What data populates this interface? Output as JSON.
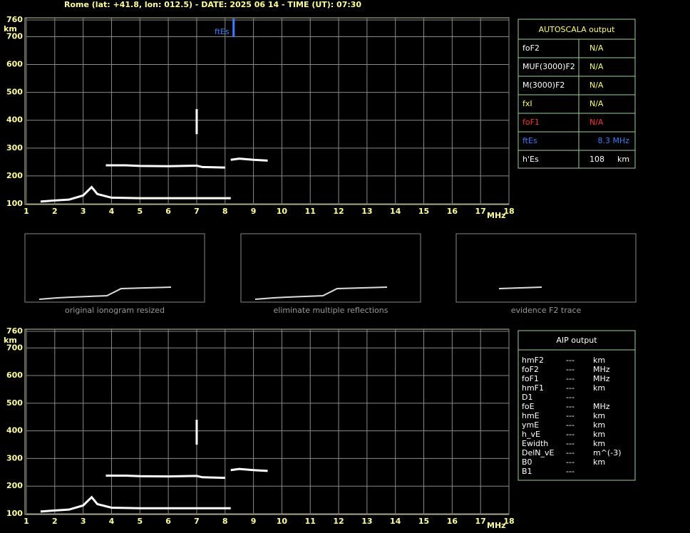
{
  "header": {
    "title": "Rome (lat: +41.8, lon: 012.5) - DATE: 2025 06 14 - TIME (UT): 07:30"
  },
  "chart_data": [
    {
      "type": "line",
      "xlim": [
        1,
        18
      ],
      "xticks": [
        1,
        2,
        3,
        4,
        5,
        6,
        7,
        8,
        9,
        10,
        11,
        12,
        13,
        14,
        15,
        16,
        17,
        18
      ],
      "ylim": [
        100,
        760
      ],
      "yticks": [
        100,
        200,
        300,
        400,
        500,
        600,
        700,
        760
      ],
      "xlabel": "MHz",
      "ylabel": "km",
      "grid": true,
      "series": [
        {
          "color": "#ffffff",
          "x": [
            1.5,
            2,
            2.5,
            3,
            3.2,
            3.3,
            3.5,
            4,
            5,
            6,
            7,
            8.2
          ],
          "values": [
            108,
            112,
            115,
            130,
            150,
            160,
            135,
            122,
            120,
            120,
            120,
            120
          ]
        },
        {
          "color": "#ffffff",
          "x": [
            3.8,
            4.5,
            5,
            6,
            7,
            7.2,
            8
          ],
          "values": [
            238,
            238,
            236,
            235,
            237,
            232,
            230
          ]
        },
        {
          "color": "#ffffff",
          "x": [
            8.2,
            8.5,
            9,
            9.5
          ],
          "values": [
            258,
            262,
            258,
            255
          ]
        },
        {
          "color": "#ffffff",
          "x": [
            7,
            7
          ],
          "values": [
            350,
            440
          ]
        }
      ],
      "annotation": {
        "text": "ftEs",
        "x": 8.3,
        "color": "#3a7dff"
      }
    },
    {
      "type": "line",
      "xlim": [
        1,
        18
      ],
      "xticks": [
        1,
        2,
        3,
        4,
        5,
        6,
        7,
        8,
        9,
        10,
        11,
        12,
        13,
        14,
        15,
        16,
        17,
        18
      ],
      "ylim": [
        100,
        760
      ],
      "yticks": [
        100,
        200,
        300,
        400,
        500,
        600,
        700,
        760
      ],
      "xlabel": "MHz",
      "ylabel": "km",
      "grid": true,
      "series": [
        {
          "color": "#ffffff",
          "x": [
            1.5,
            2,
            2.5,
            3,
            3.2,
            3.3,
            3.5,
            4,
            5,
            6,
            7,
            8.2
          ],
          "values": [
            108,
            112,
            115,
            130,
            150,
            160,
            135,
            122,
            120,
            120,
            120,
            120
          ]
        },
        {
          "color": "#ffffff",
          "x": [
            3.8,
            4.5,
            5,
            6,
            7,
            7.2,
            8
          ],
          "values": [
            238,
            238,
            236,
            235,
            237,
            232,
            230
          ]
        },
        {
          "color": "#ffffff",
          "x": [
            8.2,
            8.5,
            9,
            9.5
          ],
          "values": [
            258,
            262,
            258,
            255
          ]
        },
        {
          "color": "#ffffff",
          "x": [
            7,
            7
          ],
          "values": [
            350,
            440
          ]
        }
      ]
    }
  ],
  "autoscala": {
    "title": "AUTOSCALA output",
    "rows": [
      {
        "label": "foF2",
        "value": "N/A",
        "color": "#ffffff",
        "value_color": "#ffff66"
      },
      {
        "label": "MUF(3000)F2",
        "value": "N/A",
        "color": "#ffffff",
        "value_color": "#ffff66"
      },
      {
        "label": "M(3000)F2",
        "value": "N/A",
        "color": "#ffffff",
        "value_color": "#ffff66"
      },
      {
        "label": "fxI",
        "value": "N/A",
        "color": "#ffff66",
        "value_color": "#ffff66"
      },
      {
        "label": "foF1",
        "value": "N/A",
        "color": "#ff3030",
        "value_color": "#ff3030"
      },
      {
        "label": "ftEs",
        "value": "8.3 MHz",
        "color": "#3a7dff",
        "value_color": "#3a7dff"
      },
      {
        "label": "h'Es",
        "value": "108",
        "unit": "km",
        "color": "#ffffff",
        "value_color": "#ffffff"
      }
    ]
  },
  "thumbnails": [
    {
      "caption": "original ionogram resized"
    },
    {
      "caption": "eliminate multiple reflections"
    },
    {
      "caption": "evidence F2 trace"
    }
  ],
  "aip": {
    "title": "AIP output",
    "rows": [
      [
        "hmF2",
        "---",
        "km"
      ],
      [
        "foF2",
        "---",
        "MHz"
      ],
      [
        "foF1",
        "---",
        "MHz"
      ],
      [
        "hmF1",
        "---",
        "km"
      ],
      [
        "D1",
        "---"
      ],
      [
        "foE",
        "---",
        "MHz"
      ],
      [
        "hmE",
        "---",
        "km"
      ],
      [
        "ymE",
        "---",
        "km"
      ],
      [
        "h_vE",
        "---",
        "km"
      ],
      [
        "Ewidth",
        "---",
        "km"
      ],
      [
        "DelN_vE",
        "---",
        "m^(-3)"
      ],
      [
        "B0",
        "---",
        "km"
      ],
      [
        "B1",
        "---"
      ]
    ]
  }
}
